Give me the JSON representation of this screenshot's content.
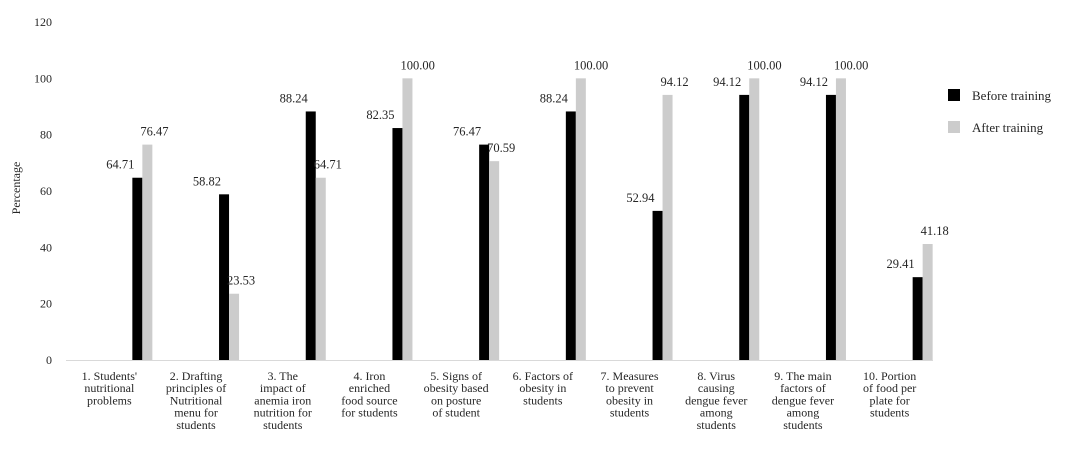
{
  "chart_data": {
    "type": "bar",
    "ylabel": "Percentage",
    "xlabel": "",
    "ylim": [
      0,
      120
    ],
    "yticks": [
      0,
      20,
      40,
      60,
      80,
      100,
      120
    ],
    "grid": false,
    "legend_position": "right",
    "categories": [
      "1. Students' nutritional problems",
      "2. Drafting principles of Nutritional menu for students",
      "3. The impact of anemia iron nutrition for students",
      "4. Iron enriched food source for students",
      "5. Signs of obesity based on posture of student",
      "6. Factors of obesity in students",
      "7. Measures to prevent obesity in students",
      "8. Virus causing dengue fever among students",
      "9. The main factors of dengue fever among students",
      "10. Portion of food per plate for students"
    ],
    "category_lines": [
      [
        "1. Students'",
        "nutritional",
        "problems"
      ],
      [
        "2. Drafting",
        "principles of",
        "Nutritional",
        "menu for",
        "students"
      ],
      [
        "3. The",
        "impact of",
        "anemia iron",
        "nutrition for",
        "students"
      ],
      [
        "4. Iron",
        "enriched",
        "food source",
        "for students"
      ],
      [
        "5. Signs of",
        "obesity based",
        "on  posture",
        "of student"
      ],
      [
        "6. Factors of",
        "obesity in",
        "students"
      ],
      [
        "7. Measures",
        "to prevent",
        "obesity in",
        "students"
      ],
      [
        "8. Virus",
        "causing",
        "dengue fever",
        "among",
        "students"
      ],
      [
        "9. The main",
        "factors of",
        "dengue fever",
        "among",
        "students"
      ],
      [
        "10. Portion",
        "of food per",
        "plate for",
        "students"
      ]
    ],
    "series": [
      {
        "name": "Before training",
        "color": "#000000",
        "values": [
          64.71,
          58.82,
          88.24,
          82.35,
          76.47,
          88.24,
          52.94,
          94.12,
          94.12,
          29.41
        ],
        "labels": [
          "64.71",
          "58.82",
          "88.24",
          "82.35",
          "76.47",
          "88.24",
          "52.94",
          "94.12",
          "94.12",
          "29.41"
        ]
      },
      {
        "name": "After training",
        "color": "#cccccc",
        "values": [
          76.47,
          23.53,
          64.71,
          100.0,
          70.59,
          100.0,
          94.12,
          100.0,
          100.0,
          41.18
        ],
        "labels": [
          "76.47",
          "23.53",
          "64.71",
          "100.00",
          "70.59",
          "100.00",
          "94.12",
          "100.00",
          "100.00",
          "41.18"
        ]
      }
    ]
  }
}
